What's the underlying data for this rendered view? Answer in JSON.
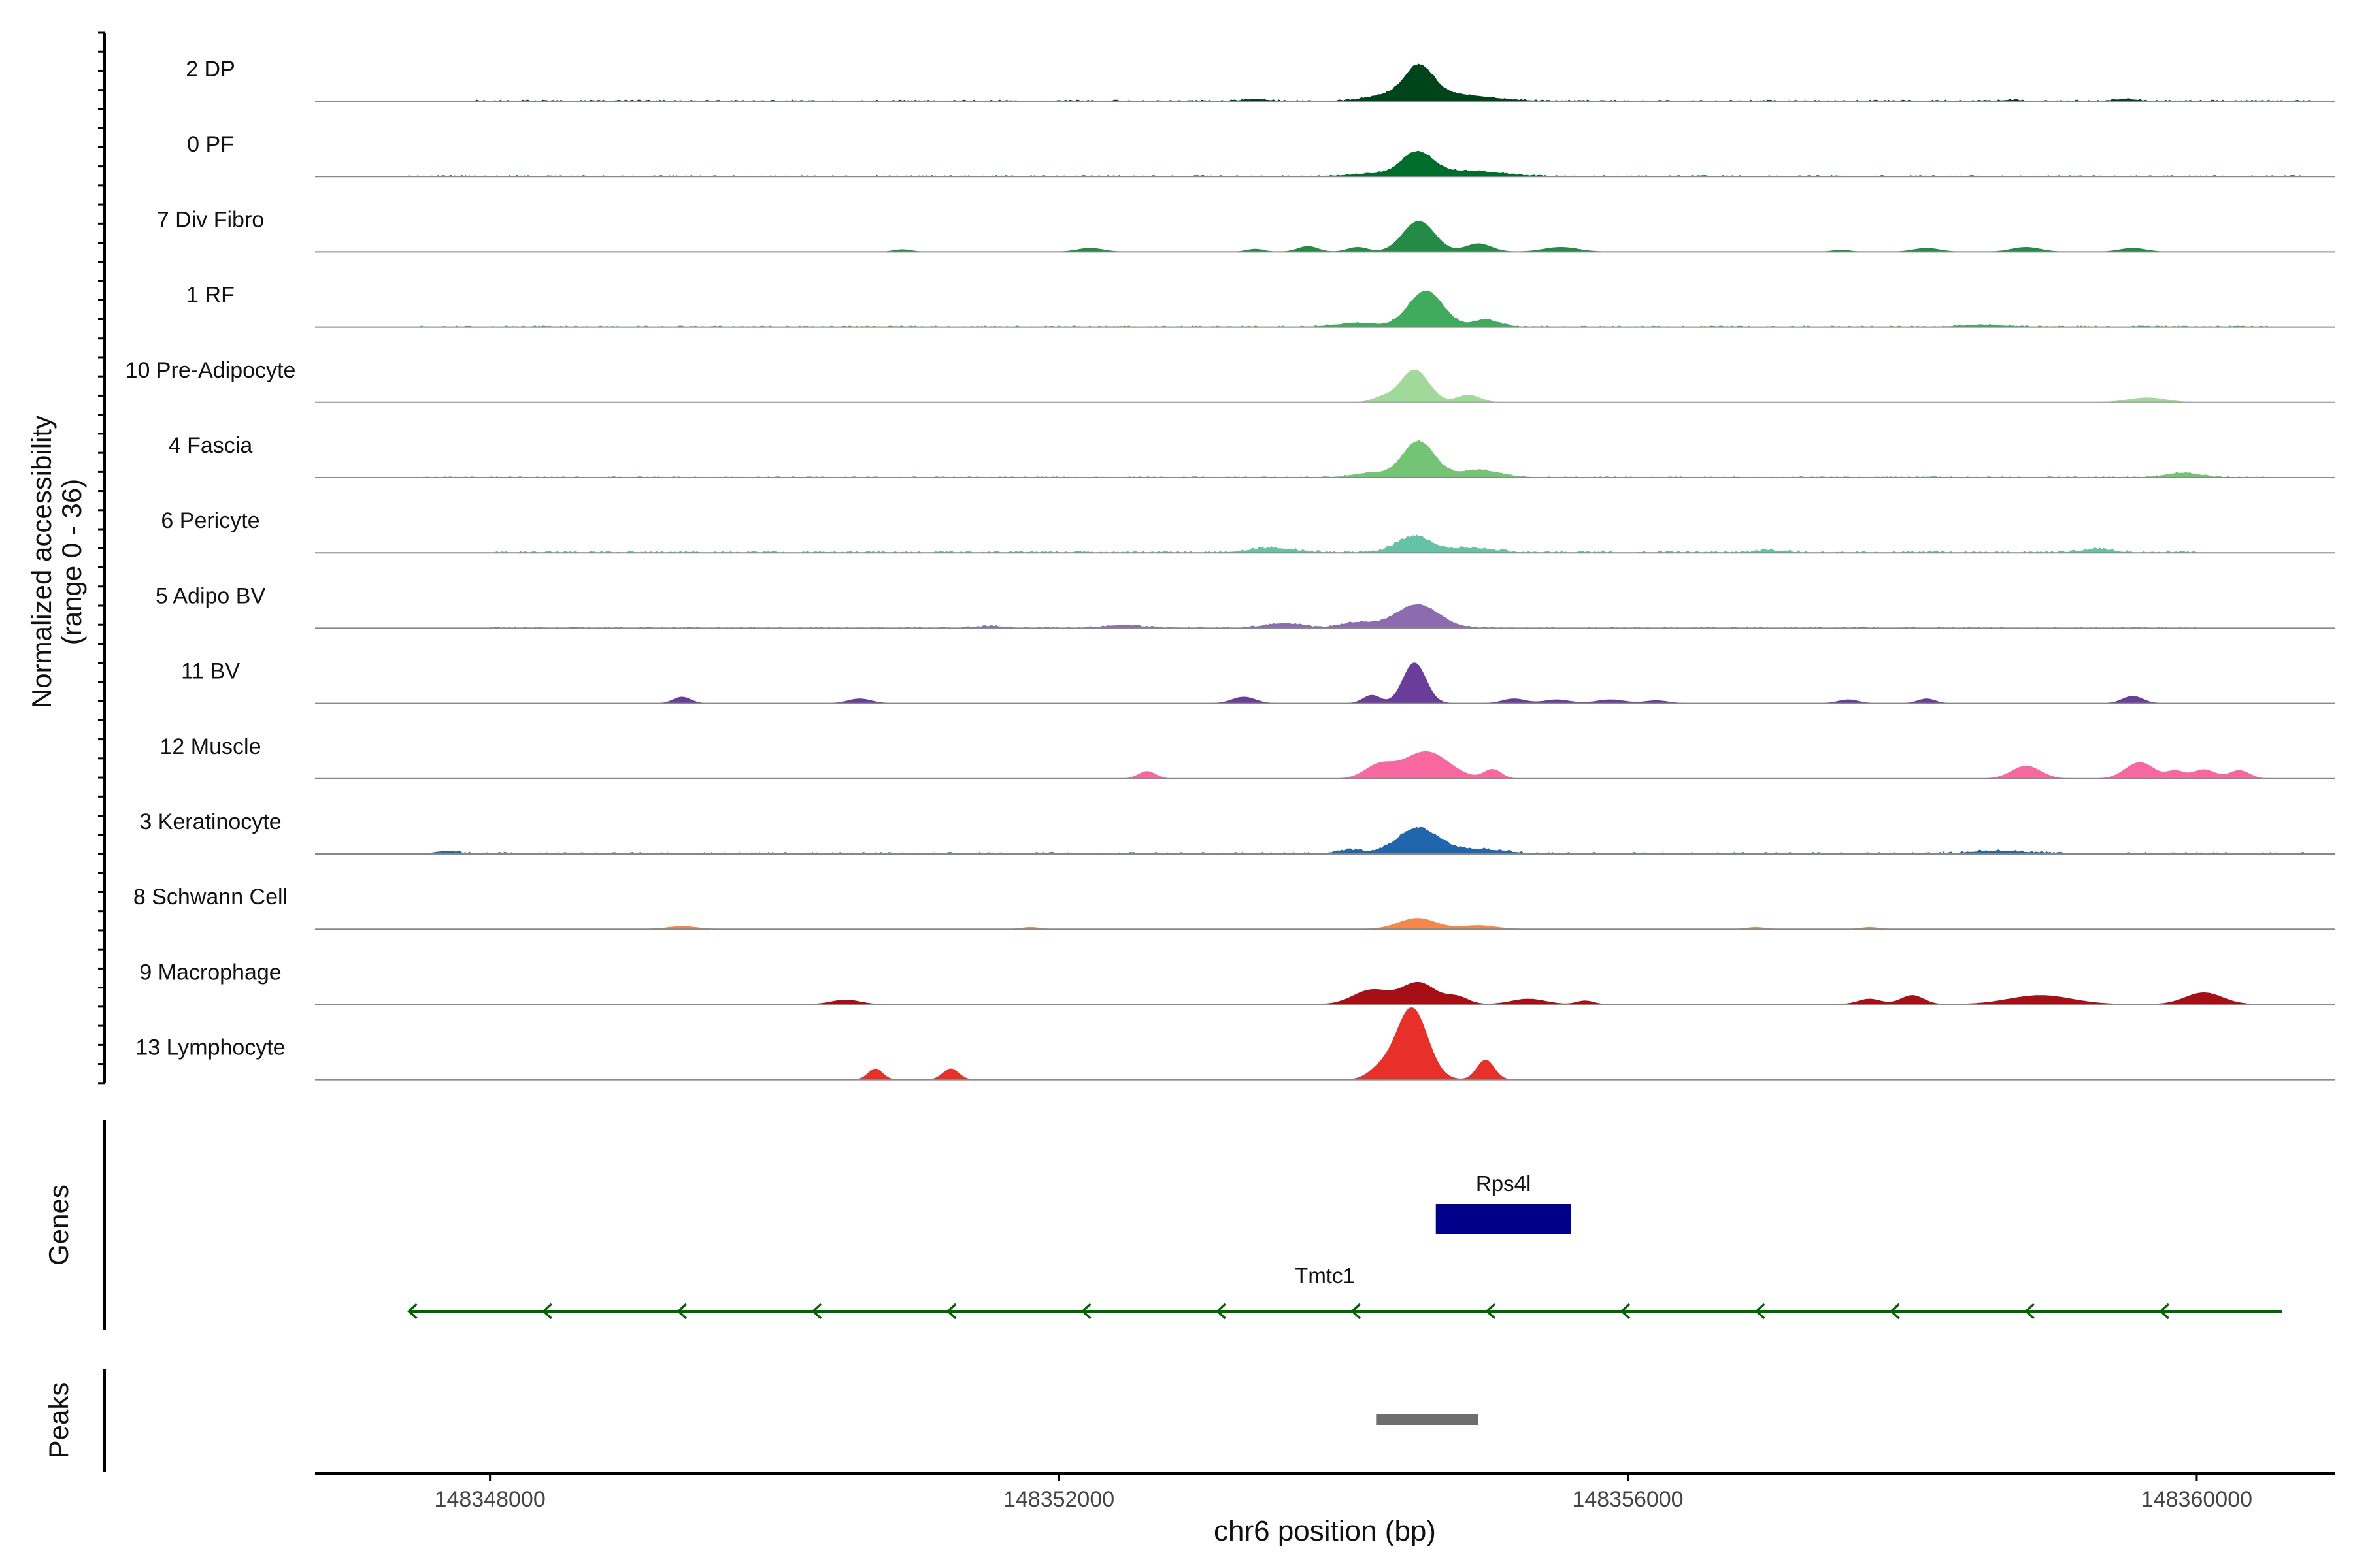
{
  "chart_data": {
    "type": "area",
    "title": "",
    "ylabel_line1": "Normalized accessibility",
    "ylabel_line2": "(range 0 - 36)",
    "y_range": [
      0,
      36
    ],
    "xlabel": "chr6 position (bp)",
    "xlim": [
      148346770,
      148360970
    ],
    "x_ticks": [
      148348000,
      148352000,
      148356000,
      148360000
    ],
    "x_tick_labels": [
      "148348000",
      "148352000",
      "148356000",
      "148360000"
    ],
    "tracks": [
      {
        "name": "2 DP",
        "color": "#00441b",
        "peaks": [
          [
            148354530,
            34,
            100
          ],
          [
            148354730,
            8,
            260
          ],
          [
            148354280,
            5,
            120
          ],
          [
            148353380,
            2,
            80
          ],
          [
            148359500,
            2,
            80
          ],
          [
            148358700,
            1.2,
            60
          ]
        ],
        "noise": [
          [
            148347900,
            148360800,
            0.9
          ]
        ]
      },
      {
        "name": "0 PF",
        "color": "#006d2c",
        "peaks": [
          [
            148354520,
            26,
            110
          ],
          [
            148354880,
            6,
            220
          ],
          [
            148354200,
            3,
            150
          ]
        ],
        "noise": [
          [
            148347400,
            148360800,
            0.8
          ]
        ]
      },
      {
        "name": "7 Div Fibro",
        "color": "#238b45",
        "peaks": [
          [
            148354530,
            34,
            110
          ],
          [
            148354950,
            9,
            90
          ],
          [
            148355530,
            5,
            120
          ],
          [
            148354100,
            5,
            70
          ],
          [
            148353750,
            6,
            70
          ],
          [
            148353380,
            3,
            60
          ],
          [
            148352220,
            4,
            90
          ],
          [
            148350900,
            2.5,
            60
          ],
          [
            148358100,
            4,
            90
          ],
          [
            148358800,
            5,
            100
          ],
          [
            148359550,
            4,
            90
          ],
          [
            148357500,
            2,
            60
          ]
        ],
        "noise": []
      },
      {
        "name": "1 RF",
        "color": "#41ab5d",
        "peaks": [
          [
            148354580,
            40,
            120
          ],
          [
            148355000,
            8,
            90
          ],
          [
            148354100,
            4,
            150
          ],
          [
            148358500,
            2,
            150
          ]
        ],
        "noise": [
          [
            148347500,
            148360500,
            0.8
          ]
        ]
      },
      {
        "name": "10 Pre-Adipocyte",
        "color": "#a1d99b",
        "peaks": [
          [
            148354500,
            36,
            100
          ],
          [
            148354880,
            8,
            80
          ],
          [
            148354270,
            5,
            70
          ],
          [
            148359650,
            5,
            130
          ]
        ],
        "noise": []
      },
      {
        "name": "4 Fascia",
        "color": "#74c476",
        "peaks": [
          [
            148354530,
            40,
            110
          ],
          [
            148354950,
            8,
            150
          ],
          [
            148354200,
            5,
            130
          ],
          [
            148359900,
            5,
            120
          ]
        ],
        "noise": [
          [
            148347500,
            148360500,
            0.8
          ]
        ]
      },
      {
        "name": "6 Pericyte",
        "color": "#66c2a4",
        "peaks": [
          [
            148354500,
            18,
            120
          ],
          [
            148354900,
            5,
            150
          ],
          [
            148353500,
            5,
            150
          ],
          [
            148359300,
            4,
            100
          ],
          [
            148357000,
            2,
            100
          ]
        ],
        "noise": [
          [
            148348000,
            148360000,
            1.5
          ]
        ]
      },
      {
        "name": "5 Adipo BV",
        "color": "#8c6bb1",
        "peaks": [
          [
            148354520,
            26,
            150
          ],
          [
            148354100,
            6,
            120
          ],
          [
            148353580,
            5,
            130
          ],
          [
            148352450,
            3,
            130
          ],
          [
            148351520,
            2,
            100
          ]
        ],
        "noise": [
          [
            148348000,
            148360000,
            0.8
          ]
        ]
      },
      {
        "name": "11 BV",
        "color": "#6a3d9a",
        "peaks": [
          [
            148354500,
            45,
            80
          ],
          [
            148354200,
            9,
            60
          ],
          [
            148353300,
            7,
            80
          ],
          [
            148349350,
            7,
            60
          ],
          [
            148350600,
            5,
            80
          ],
          [
            148355200,
            5,
            80
          ],
          [
            148355500,
            4,
            90
          ],
          [
            148355880,
            4,
            100
          ],
          [
            148356200,
            3,
            80
          ],
          [
            148357550,
            4,
            70
          ],
          [
            148358100,
            5,
            60
          ],
          [
            148359550,
            8,
            70
          ]
        ],
        "noise": []
      },
      {
        "name": "12 Muscle",
        "color": "#f768a1",
        "peaks": [
          [
            148354580,
            30,
            160
          ],
          [
            148354250,
            14,
            100
          ],
          [
            148355050,
            10,
            60
          ],
          [
            148352620,
            8,
            60
          ],
          [
            148358800,
            14,
            100
          ],
          [
            148359600,
            18,
            100
          ],
          [
            148360050,
            10,
            80
          ],
          [
            148360300,
            9,
            70
          ],
          [
            148359850,
            8,
            60
          ]
        ],
        "noise": []
      },
      {
        "name": "3 Keratinocyte",
        "color": "#2166ac",
        "peaks": [
          [
            148354520,
            28,
            140
          ],
          [
            148354920,
            5,
            200
          ],
          [
            148354050,
            4,
            100
          ],
          [
            148347700,
            3,
            80
          ],
          [
            148358600,
            3,
            200
          ]
        ],
        "noise": [
          [
            148347700,
            148360800,
            1.2
          ]
        ]
      },
      {
        "name": "8 Schwann Cell",
        "color": "#f4874b",
        "peaks": [
          [
            148354520,
            12,
            130
          ],
          [
            148354950,
            4,
            120
          ],
          [
            148349350,
            3,
            100
          ],
          [
            148351800,
            2,
            60
          ],
          [
            148356900,
            2,
            60
          ],
          [
            148357700,
            2,
            60
          ]
        ],
        "noise": []
      },
      {
        "name": "9 Macrophage",
        "color": "#a50f15",
        "peaks": [
          [
            148354530,
            24,
            120
          ],
          [
            148354200,
            16,
            130
          ],
          [
            148354800,
            8,
            80
          ],
          [
            148355300,
            6,
            120
          ],
          [
            148355700,
            4,
            60
          ],
          [
            148360050,
            13,
            130
          ],
          [
            148358900,
            10,
            220
          ],
          [
            148358000,
            10,
            80
          ],
          [
            148357700,
            6,
            80
          ],
          [
            148350500,
            5,
            100
          ]
        ],
        "noise": []
      },
      {
        "name": "13 Lymphocyte",
        "color": "#e8302a",
        "peaks": [
          [
            148354480,
            80,
            110
          ],
          [
            148354250,
            10,
            80
          ],
          [
            148355000,
            22,
            60
          ],
          [
            148350710,
            12,
            50
          ],
          [
            148351240,
            12,
            55
          ]
        ],
        "noise": []
      }
    ],
    "genes": [
      {
        "name": "Rps4l",
        "start": 148354650,
        "end": 148355600,
        "strand": "+",
        "color": "#00008b"
      },
      {
        "name": "Tmtc1",
        "start": 148347430,
        "end": 148360600,
        "strand": "-",
        "color": "#006400"
      }
    ],
    "peaks_track": [
      {
        "start": 148354230,
        "end": 148354950,
        "color": "#6e6e6e"
      }
    ],
    "panel_labels": {
      "genes": "Genes",
      "peaks": "Peaks"
    }
  }
}
